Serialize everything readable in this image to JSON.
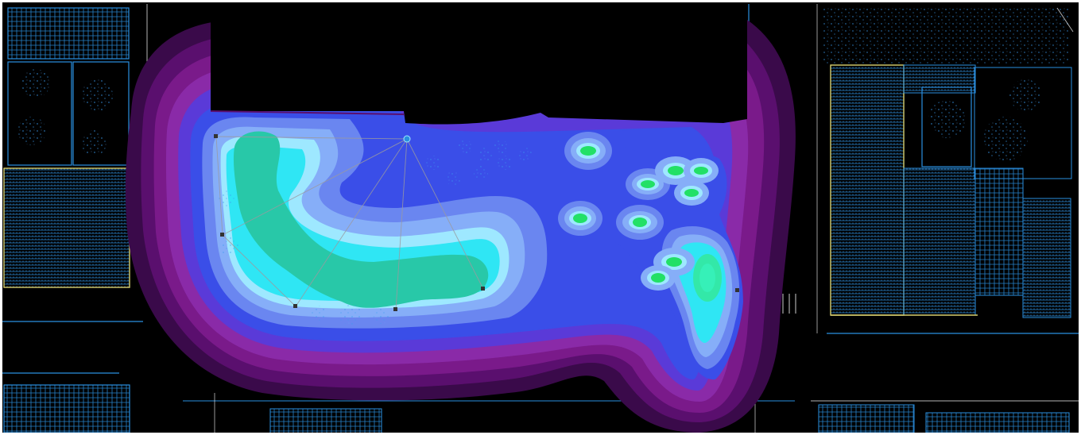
{
  "view": {
    "kind": "photometric lighting calculation over site plan",
    "background_color": "#000000",
    "linework_color": "#2a8fe0",
    "highlight_line_color": "#d8d070",
    "frame_color": "#ffffff"
  },
  "illuminance_bands": {
    "colors": [
      "#3a0a4a",
      "#5a0f6e",
      "#7a1a8a",
      "#8a2aa8",
      "#5a3ad8",
      "#3a4ee8",
      "#6a86f0",
      "#86aef8",
      "#9ee8ff",
      "#2fe6f4",
      "#28c8a8",
      "#33e8a8",
      "#22e066"
    ]
  },
  "site": {
    "dark_building_color": "#000000",
    "fixture_color": "#444444",
    "sightline_color": "#9a9aa0"
  }
}
